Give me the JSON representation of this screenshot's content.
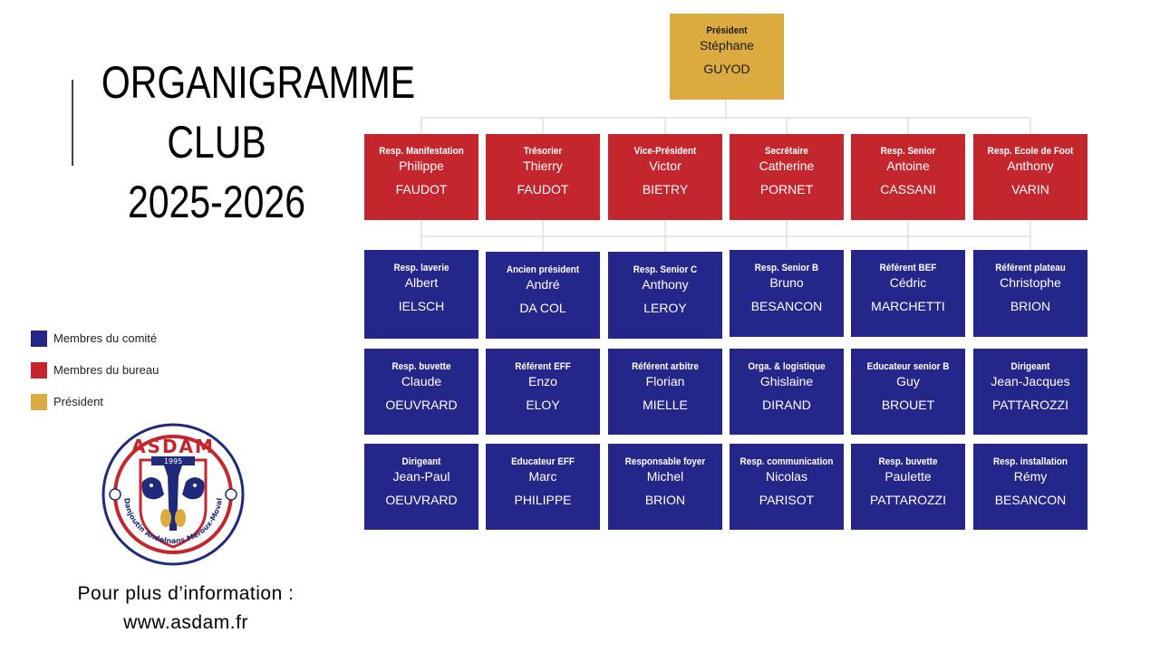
{
  "title": {
    "line1": "ORGANIGRAMME",
    "line2": "CLUB",
    "line3": "2025-2026"
  },
  "legend": [
    {
      "label": "Membres du comité",
      "color": "#25268a"
    },
    {
      "label": "Membres du bureau",
      "color": "#c4262e"
    },
    {
      "label": "Président",
      "color": "#dbab3f"
    }
  ],
  "logo": {
    "name": "ASDAM",
    "year": "1995",
    "ring_text": "Danjoutin Andelnans Meroux-Moval"
  },
  "info": {
    "line1": "Pour plus d’information :",
    "line2": "www.asdam.fr"
  },
  "president": {
    "role": "Président",
    "first": "Stéphane",
    "last": "GUYOD"
  },
  "bureau": [
    {
      "role": "Resp. Manifestation",
      "first": "Philippe",
      "last": "FAUDOT"
    },
    {
      "role": "Trésorier",
      "first": "Thierry",
      "last": "FAUDOT"
    },
    {
      "role": "Vice-Président",
      "first": "Victor",
      "last": "BIETRY"
    },
    {
      "role": "Secrétaire",
      "first": "Catherine",
      "last": "PORNET"
    },
    {
      "role": "Resp. Senior",
      "first": "Antoine",
      "last": "CASSANI"
    },
    {
      "role": "Resp. Ecole de Foot",
      "first": "Anthony",
      "last": "VARIN"
    }
  ],
  "committee": [
    [
      {
        "role": "Resp. laverie",
        "first": "Albert",
        "last": "IELSCH"
      },
      {
        "role": "Ancien président",
        "first": "André",
        "last": "DA COL"
      },
      {
        "role": "Resp. Senior C",
        "first": "Anthony",
        "last": "LEROY"
      },
      {
        "role": "Resp. Senior B",
        "first": "Bruno",
        "last": "BESANCON"
      },
      {
        "role": "Référent BEF",
        "first": "Cédric",
        "last": "MARCHETTI"
      },
      {
        "role": "Référent plateau",
        "first": "Christophe",
        "last": "BRION"
      }
    ],
    [
      {
        "role": "Resp. buvette",
        "first": "Claude",
        "last": "OEUVRARD"
      },
      {
        "role": "Référent EFF",
        "first": "Enzo",
        "last": "ELOY"
      },
      {
        "role": "Référent arbitre",
        "first": "Florian",
        "last": "MIELLE"
      },
      {
        "role": "Orga. & logistique",
        "first": "Ghislaine",
        "last": "DIRAND"
      },
      {
        "role": "Educateur senior B",
        "first": "Guy",
        "last": "BROUET"
      },
      {
        "role": "Dirigeant",
        "first": "Jean-Jacques",
        "last": "PATTAROZZI"
      }
    ],
    [
      {
        "role": "Dirigeant",
        "first": "Jean-Paul",
        "last": "OEUVRARD"
      },
      {
        "role": "Educateur EFF",
        "first": "Marc",
        "last": "PHILIPPE"
      },
      {
        "role": "Responsable foyer",
        "first": "Michel",
        "last": "BRION"
      },
      {
        "role": "Resp. communication",
        "first": "Nicolas",
        "last": "PARISOT"
      },
      {
        "role": "Resp. buvette",
        "first": "Paulette",
        "last": "PATTAROZZI"
      },
      {
        "role": "Resp. installation",
        "first": "Rémy",
        "last": "BESANCON"
      }
    ]
  ]
}
